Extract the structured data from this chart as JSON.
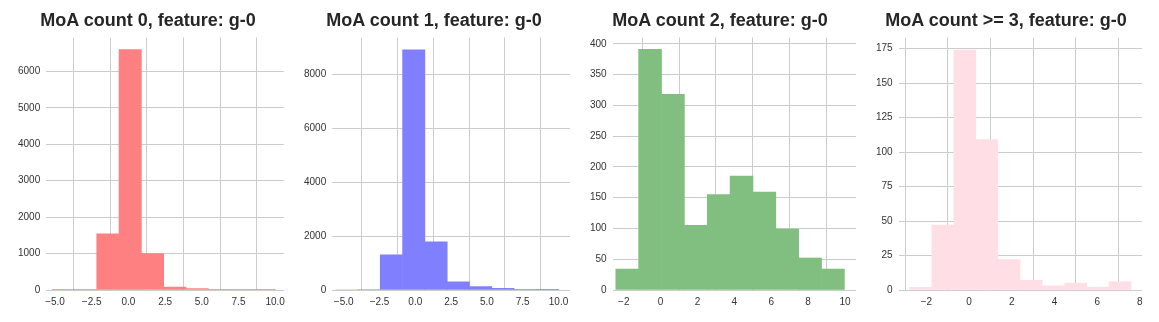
{
  "chart_data": [
    {
      "type": "histogram",
      "title": "MoA count 0, feature: g-0",
      "bins": [
        -5.2,
        -3.68,
        -2.16,
        -0.64,
        0.88,
        2.4,
        3.92,
        5.44,
        6.96,
        8.48,
        10.0
      ],
      "values": [
        10,
        10,
        1540,
        6600,
        1000,
        80,
        40,
        10,
        10,
        10
      ],
      "color": "#ff8080",
      "xlim": [
        -5.6,
        10.6
      ],
      "ylim": [
        0,
        6930
      ],
      "xticks": [
        {
          "value": -5,
          "label": "−5.0"
        },
        {
          "value": -2.5,
          "label": "−2.5"
        },
        {
          "value": 0,
          "label": "0.0"
        },
        {
          "value": 2.5,
          "label": "2.5"
        },
        {
          "value": 5,
          "label": "5.0"
        },
        {
          "value": 7.5,
          "label": "7.5"
        },
        {
          "value": 10,
          "label": "10.0"
        }
      ],
      "yticks": [
        0,
        1000,
        2000,
        3000,
        4000,
        5000,
        6000
      ],
      "grid": true
    },
    {
      "type": "histogram",
      "title": "MoA count 1, feature: g-0",
      "bins": [
        -5.56,
        -4.0,
        -2.45,
        -0.89,
        0.67,
        2.23,
        3.78,
        5.34,
        6.89,
        8.45,
        10.0
      ],
      "values": [
        0,
        20,
        1300,
        8900,
        1780,
        300,
        130,
        60,
        20,
        10
      ],
      "color": "#8080ff",
      "xlim": [
        -5.8,
        10.8
      ],
      "ylim": [
        0,
        9350
      ],
      "xticks": [
        {
          "value": -5,
          "label": "−5.0"
        },
        {
          "value": -2.5,
          "label": "−2.5"
        },
        {
          "value": 0,
          "label": "0.0"
        },
        {
          "value": 2.5,
          "label": "2.5"
        },
        {
          "value": 5,
          "label": "5.0"
        },
        {
          "value": 7.5,
          "label": "7.5"
        },
        {
          "value": 10,
          "label": "10.0"
        }
      ],
      "yticks": [
        0,
        2000,
        4000,
        6000,
        8000
      ],
      "grid": true
    },
    {
      "type": "histogram",
      "title": "MoA count 2, feature: g-0",
      "bins": [
        -2.43,
        -1.19,
        0.05,
        1.29,
        2.53,
        3.77,
        5.01,
        6.25,
        7.49,
        8.73,
        9.97
      ],
      "values": [
        34,
        391,
        318,
        105,
        155,
        185,
        159,
        99,
        52,
        34
      ],
      "color": "#80bf80",
      "xlim": [
        -2.6,
        10.6
      ],
      "ylim": [
        0,
        410
      ],
      "xticks": [
        {
          "value": -2,
          "label": "−2"
        },
        0,
        2,
        4,
        6,
        8,
        10
      ],
      "yticks": [
        0,
        50,
        100,
        150,
        200,
        250,
        300,
        350,
        400
      ],
      "grid": true
    },
    {
      "type": "histogram",
      "title": "MoA count >= 3, feature: g-0",
      "bins": [
        -2.79,
        -1.75,
        -0.71,
        0.31,
        1.35,
        2.39,
        3.43,
        4.47,
        5.51,
        6.55,
        7.59
      ],
      "values": [
        2,
        47,
        174,
        109,
        22,
        7,
        3,
        5,
        2,
        6
      ],
      "color": "#ffdfe5",
      "xlim": [
        -3.3,
        8.1
      ],
      "ylim": [
        0,
        183
      ],
      "xticks": [
        {
          "value": -2,
          "label": "−2"
        },
        0,
        2,
        4,
        6,
        8
      ],
      "yticks": [
        0,
        25,
        50,
        75,
        100,
        125,
        150,
        175
      ],
      "grid": true
    }
  ]
}
